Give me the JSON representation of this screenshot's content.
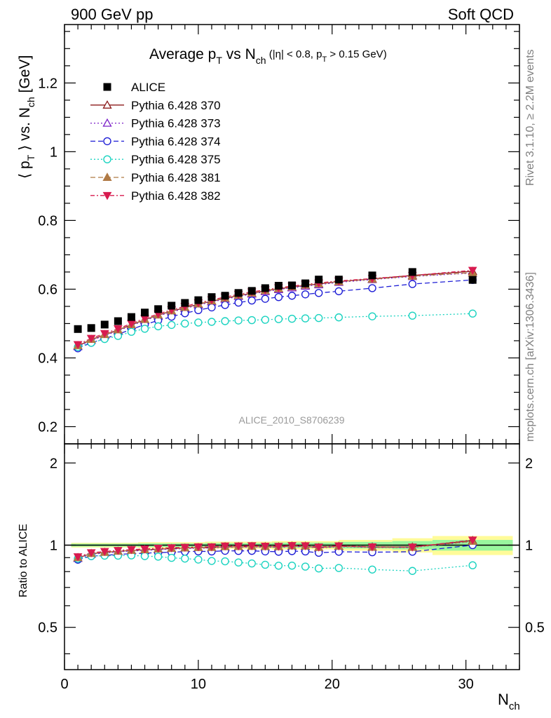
{
  "header": {
    "left": "900 GeV pp",
    "right": "Soft QCD"
  },
  "title": {
    "main": "Average p",
    "main_sub": "T",
    "vs": " vs N",
    "vs_sub": "ch",
    "cuts_a": " (|η| < 0.8, p",
    "cuts_sub": "T",
    "cuts_b": " > 0.15 GeV)"
  },
  "ylabel": {
    "a": "⟨ p",
    "sub1": "T",
    "b": " ⟩ vs. N",
    "sub2": "ch",
    "c": " [GeV]"
  },
  "ratio_ylabel": "Ratio to ALICE",
  "xlabel": {
    "a": "N",
    "sub": "ch"
  },
  "watermark": "ALICE_2010_S8706239",
  "side_right_top": "Rivet 3.1.10, ≥ 2.2M events",
  "side_right_bottom": "mcplots.cern.ch [arXiv:1306.3436]",
  "chart_data": {
    "type": "scatter",
    "xlim": [
      0,
      34
    ],
    "ylim": [
      0.15,
      1.37
    ],
    "ratio_ylim": [
      0.35,
      2.35
    ],
    "x_ticks": [
      "0",
      "10",
      "20",
      "30"
    ],
    "y_ticks": [
      "0.2",
      "0.4",
      "0.6",
      "0.8",
      "1",
      "1.2"
    ],
    "ratio_ticks": [
      "0.5",
      "1",
      "2"
    ],
    "legend_position": "top-left",
    "x": [
      1,
      2,
      3,
      4,
      5,
      6,
      7,
      8,
      9,
      10,
      11,
      12,
      13,
      14,
      15,
      16,
      17,
      18,
      19,
      20.5,
      23,
      26,
      30.5
    ],
    "data": {
      "name": "ALICE",
      "values": [
        0.484,
        0.487,
        0.497,
        0.507,
        0.519,
        0.532,
        0.542,
        0.552,
        0.56,
        0.568,
        0.577,
        0.581,
        0.589,
        0.595,
        0.603,
        0.61,
        0.611,
        0.617,
        0.628,
        0.628,
        0.64,
        0.65,
        0.627
      ],
      "band_x": [
        0.5,
        5.5,
        10.5,
        15.5,
        20.5,
        24.5,
        27.5,
        33.5
      ],
      "band_inner": [
        0.012,
        0.015,
        0.018,
        0.022,
        0.028,
        0.035,
        0.045
      ],
      "band_outer": [
        0.02,
        0.025,
        0.03,
        0.035,
        0.045,
        0.06,
        0.08
      ]
    },
    "series": [
      {
        "name": "Pythia 6.428 370",
        "color": "#8b1a1a",
        "dash": "",
        "marker": "triangle-open",
        "values": [
          0.435,
          0.453,
          0.467,
          0.481,
          0.496,
          0.511,
          0.524,
          0.536,
          0.546,
          0.556,
          0.565,
          0.573,
          0.581,
          0.588,
          0.595,
          0.601,
          0.606,
          0.611,
          0.615,
          0.622,
          0.63,
          0.64,
          0.652
        ]
      },
      {
        "name": "Pythia 6.428 373",
        "color": "#7b1fc8",
        "dash": "2,3",
        "marker": "triangle-open",
        "values": [
          0.433,
          0.451,
          0.465,
          0.479,
          0.494,
          0.509,
          0.522,
          0.534,
          0.544,
          0.554,
          0.563,
          0.571,
          0.579,
          0.586,
          0.593,
          0.599,
          0.604,
          0.609,
          0.613,
          0.62,
          0.628,
          0.637,
          0.647
        ]
      },
      {
        "name": "Pythia 6.428 374",
        "color": "#1f1fd6",
        "dash": "7,4",
        "marker": "circle-open",
        "values": [
          0.428,
          0.444,
          0.456,
          0.469,
          0.483,
          0.497,
          0.509,
          0.52,
          0.53,
          0.539,
          0.547,
          0.554,
          0.561,
          0.567,
          0.572,
          0.577,
          0.581,
          0.585,
          0.589,
          0.594,
          0.603,
          0.615,
          0.627
        ]
      },
      {
        "name": "Pythia 6.428 375",
        "color": "#19d3c0",
        "dash": "2,3",
        "marker": "circle-open",
        "values": [
          0.432,
          0.444,
          0.455,
          0.464,
          0.476,
          0.485,
          0.492,
          0.496,
          0.5,
          0.503,
          0.505,
          0.507,
          0.509,
          0.51,
          0.511,
          0.513,
          0.514,
          0.515,
          0.516,
          0.518,
          0.521,
          0.523,
          0.529
        ]
      },
      {
        "name": "Pythia 6.428 381",
        "color": "#b07a45",
        "dash": "7,4",
        "marker": "triangle-filled",
        "values": [
          0.436,
          0.454,
          0.468,
          0.482,
          0.497,
          0.512,
          0.525,
          0.537,
          0.547,
          0.557,
          0.566,
          0.574,
          0.582,
          0.589,
          0.596,
          0.602,
          0.607,
          0.612,
          0.616,
          0.622,
          0.629,
          0.638,
          0.648
        ]
      },
      {
        "name": "Pythia 6.428 382",
        "color": "#d81b4f",
        "dash": "6,3,2,3",
        "marker": "triangle-down-filled",
        "values": [
          0.439,
          0.457,
          0.471,
          0.485,
          0.5,
          0.515,
          0.528,
          0.54,
          0.55,
          0.56,
          0.569,
          0.577,
          0.585,
          0.592,
          0.598,
          0.604,
          0.609,
          0.614,
          0.618,
          0.624,
          0.631,
          0.64,
          0.655
        ]
      }
    ]
  }
}
